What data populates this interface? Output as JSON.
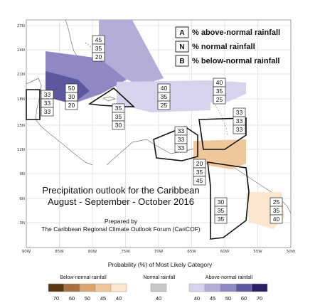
{
  "map": {
    "lat_labels": [
      "27N",
      "24N",
      "21N",
      "18N",
      "15N",
      "12N",
      "9N",
      "6N",
      "3N"
    ],
    "lon_labels": [
      "90W",
      "85W",
      "80W",
      "75W",
      "70W",
      "65W",
      "60W",
      "55W",
      "50W"
    ],
    "colors": {
      "above_40": "#d6d4ec",
      "above_45": "#b3aed8",
      "above_50": "#8f88c3",
      "above_60": "#5f56a0",
      "above_70": "#2b1e63",
      "below_40": "#fbe7cf",
      "below_45": "#efc79b",
      "below_50": "#d9a56e",
      "below_60": "#a76f3d",
      "below_70": "#5a3812",
      "normal_40": "#c8c8c8"
    }
  },
  "key": [
    {
      "letter": "A",
      "text": "% above-normal rainfall"
    },
    {
      "letter": "N",
      "text": "% normal rainfall"
    },
    {
      "letter": "B",
      "text": "% below-normal rainfall"
    }
  ],
  "caption": {
    "line1": "Precipitation outlook for the Caribbean",
    "line2": "August - September - October 2016",
    "line3": "Prepared by",
    "line4": "The Caribbean Regional Climate Outlook Forum (CariCOF)"
  },
  "boxes": [
    {
      "a": "45",
      "n": "35",
      "b": "20"
    },
    {
      "a": "50",
      "n": "30",
      "b": "20"
    },
    {
      "a": "33",
      "n": "33",
      "b": "33"
    },
    {
      "a": "35",
      "n": "35",
      "b": "30"
    },
    {
      "a": "40",
      "n": "35",
      "b": "25"
    },
    {
      "a": "40",
      "n": "35",
      "b": "25"
    },
    {
      "a": "33",
      "n": "33",
      "b": "33"
    },
    {
      "a": "33",
      "n": "33",
      "b": "33"
    },
    {
      "a": "20",
      "n": "35",
      "b": "45"
    },
    {
      "a": "30",
      "n": "35",
      "b": "35"
    },
    {
      "a": "25",
      "n": "35",
      "b": "40"
    }
  ],
  "footer": {
    "title": "Probability (%) of Most Likely Category",
    "below_label": "Below-normal rainfall",
    "normal_label": "Normal rainfall",
    "above_label": "Above-normal rainfall",
    "below_ticks": [
      "70",
      "60",
      "50",
      "45",
      "40"
    ],
    "normal_ticks": [
      "40"
    ],
    "above_ticks": [
      "40",
      "45",
      "50",
      "60",
      "70"
    ]
  }
}
